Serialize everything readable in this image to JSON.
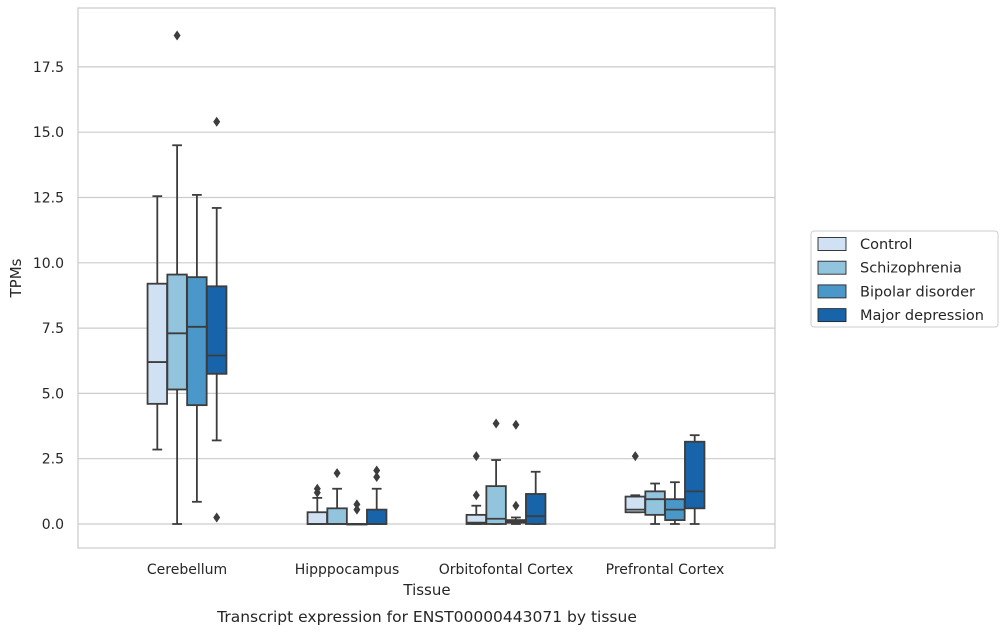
{
  "caption": "Transcript expression for ENST00000443071 by tissue",
  "chart_data": {
    "type": "box",
    "xlabel": "Tissue",
    "ylabel": "TPMs",
    "ylim": [
      -0.9,
      19.7
    ],
    "yticks": [
      0.0,
      2.5,
      5.0,
      7.5,
      10.0,
      12.5,
      15.0,
      17.5
    ],
    "ytick_labels": [
      "0.0",
      "2.5",
      "5.0",
      "7.5",
      "10.0",
      "12.5",
      "15.0",
      "17.5"
    ],
    "grid": "horizontal",
    "legend_position": "right",
    "categories": [
      "Cerebellum",
      "Hipppocampus",
      "Orbitofontal Cortex",
      "Prefrontal Cortex"
    ],
    "series": [
      {
        "name": "Control",
        "color": "#cfe1f2",
        "boxes": [
          {
            "q1": 4.6,
            "median": 6.2,
            "q3": 9.2,
            "whisker_low": 2.85,
            "whisker_high": 12.55,
            "outliers": []
          },
          {
            "q1": 0.0,
            "median": 0.0,
            "q3": 0.45,
            "whisker_low": 0.0,
            "whisker_high": 1.0,
            "outliers": [
              1.2,
              1.35
            ]
          },
          {
            "q1": 0.0,
            "median": 0.05,
            "q3": 0.35,
            "whisker_low": 0.0,
            "whisker_high": 0.7,
            "outliers": [
              1.1,
              2.6
            ]
          },
          {
            "q1": 0.45,
            "median": 0.55,
            "q3": 1.05,
            "whisker_low": 0.45,
            "whisker_high": 1.1,
            "outliers": [
              2.6
            ]
          }
        ]
      },
      {
        "name": "Schizophrenia",
        "color": "#93c4de",
        "boxes": [
          {
            "q1": 5.15,
            "median": 7.3,
            "q3": 9.55,
            "whisker_low": 0.0,
            "whisker_high": 14.5,
            "outliers": [
              18.7
            ]
          },
          {
            "q1": 0.0,
            "median": 0.0,
            "q3": 0.6,
            "whisker_low": 0.0,
            "whisker_high": 1.35,
            "outliers": [
              1.95
            ]
          },
          {
            "q1": 0.0,
            "median": 0.2,
            "q3": 1.45,
            "whisker_low": 0.0,
            "whisker_high": 2.45,
            "outliers": [
              3.85
            ]
          },
          {
            "q1": 0.35,
            "median": 0.95,
            "q3": 1.25,
            "whisker_low": 0.0,
            "whisker_high": 1.55,
            "outliers": []
          }
        ]
      },
      {
        "name": "Bipolar disorder",
        "color": "#4a98c9",
        "boxes": [
          {
            "q1": 4.55,
            "median": 7.55,
            "q3": 9.45,
            "whisker_low": 0.85,
            "whisker_high": 12.6,
            "outliers": []
          },
          {
            "q1": 0.0,
            "median": 0.0,
            "q3": 0.0,
            "whisker_low": 0.0,
            "whisker_high": 0.0,
            "outliers": [
              0.55,
              0.75
            ]
          },
          {
            "q1": 0.05,
            "median": 0.1,
            "q3": 0.15,
            "whisker_low": 0.0,
            "whisker_high": 0.25,
            "outliers": [
              0.7,
              3.8
            ]
          },
          {
            "q1": 0.15,
            "median": 0.55,
            "q3": 0.95,
            "whisker_low": 0.0,
            "whisker_high": 1.6,
            "outliers": []
          }
        ]
      },
      {
        "name": "Major depression",
        "color": "#1764ab",
        "boxes": [
          {
            "q1": 5.75,
            "median": 6.45,
            "q3": 9.1,
            "whisker_low": 3.2,
            "whisker_high": 12.1,
            "outliers": [
              0.25,
              15.4
            ]
          },
          {
            "q1": 0.0,
            "median": 0.0,
            "q3": 0.55,
            "whisker_low": 0.0,
            "whisker_high": 1.35,
            "outliers": [
              1.8,
              2.05
            ]
          },
          {
            "q1": 0.0,
            "median": 0.3,
            "q3": 1.15,
            "whisker_low": 0.0,
            "whisker_high": 2.0,
            "outliers": []
          },
          {
            "q1": 0.6,
            "median": 1.25,
            "q3": 3.15,
            "whisker_low": 0.0,
            "whisker_high": 3.4,
            "outliers": []
          }
        ]
      }
    ]
  }
}
